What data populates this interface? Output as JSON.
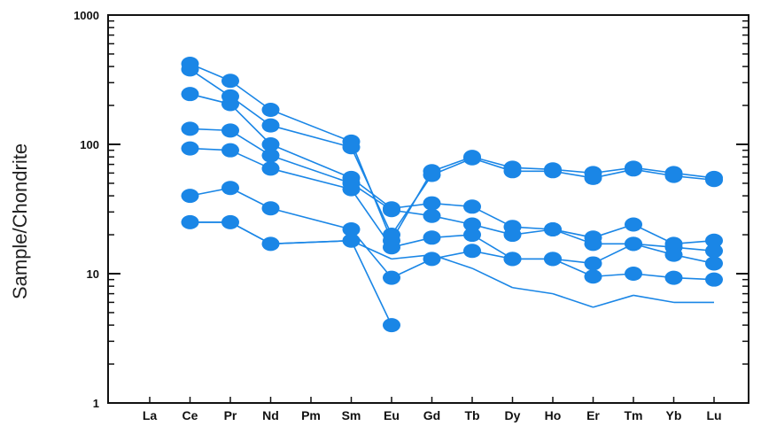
{
  "chart_data": {
    "type": "line",
    "title": "",
    "xlabel": "",
    "ylabel": "Sample/Chondrite",
    "y_scale": "log",
    "ylim": [
      1,
      1000
    ],
    "y_ticks": [
      1,
      10,
      100,
      1000
    ],
    "y_tick_labels": [
      "1",
      "10",
      "100",
      "1000"
    ],
    "grid": false,
    "legend": "none",
    "line_color": "#1a86e6",
    "marker_color": "#1a86e6",
    "categories": [
      "La",
      "Ce",
      "Pr",
      "Nd",
      "Pm",
      "Sm",
      "Eu",
      "Gd",
      "Tb",
      "Dy",
      "Ho",
      "Er",
      "Tm",
      "Yb",
      "Lu"
    ],
    "series": [
      {
        "markers": true,
        "values": [
          null,
          420,
          310,
          185,
          null,
          105,
          18,
          62,
          80,
          66,
          64,
          60,
          66,
          60,
          55
        ]
      },
      {
        "markers": true,
        "values": [
          null,
          380,
          235,
          140,
          null,
          95,
          20,
          58,
          78,
          62,
          62,
          55,
          64,
          57,
          53
        ]
      },
      {
        "markers": true,
        "values": [
          null,
          245,
          205,
          100,
          null,
          55,
          32,
          35,
          33,
          23,
          22,
          19,
          24,
          17,
          18
        ]
      },
      {
        "markers": true,
        "values": [
          null,
          132,
          128,
          82,
          null,
          50,
          31,
          28,
          24,
          20,
          22,
          17,
          17,
          16,
          15
        ]
      },
      {
        "markers": true,
        "values": [
          null,
          93,
          90,
          65,
          null,
          45,
          16,
          19,
          20,
          13,
          13,
          12,
          17,
          14,
          12
        ]
      },
      {
        "markers": true,
        "values": [
          null,
          40,
          46,
          32,
          null,
          22,
          9.3,
          13,
          15,
          13,
          13,
          9.5,
          10,
          9.3,
          9
        ]
      },
      {
        "markers": true,
        "values": [
          null,
          25,
          25,
          17,
          null,
          18,
          4,
          null,
          null,
          null,
          null,
          null,
          null,
          null,
          null
        ]
      },
      {
        "markers": false,
        "values": [
          null,
          25,
          25,
          17,
          null,
          18,
          13,
          14,
          11,
          7.8,
          7.0,
          5.5,
          6.8,
          6.0,
          6.0
        ]
      }
    ]
  }
}
